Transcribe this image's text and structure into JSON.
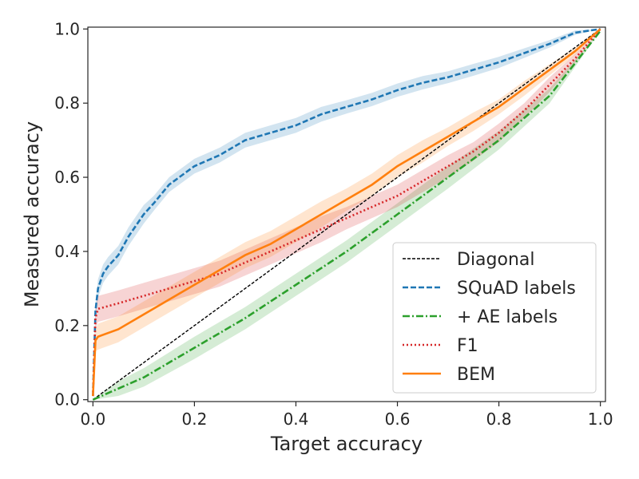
{
  "chart_data": {
    "type": "line",
    "title": "",
    "xlabel": "Target accuracy",
    "ylabel": "Measured accuracy",
    "xlim": [
      -0.01,
      1.01
    ],
    "ylim": [
      -0.005,
      1.005
    ],
    "xticks": [
      0.0,
      0.2,
      0.4,
      0.6,
      0.8,
      1.0
    ],
    "yticks": [
      0.0,
      0.2,
      0.4,
      0.6,
      0.8,
      1.0
    ],
    "xtick_labels": [
      "0.0",
      "0.2",
      "0.4",
      "0.6",
      "0.8",
      "1.0"
    ],
    "ytick_labels": [
      "0.0",
      "0.2",
      "0.4",
      "0.6",
      "0.8",
      "1.0"
    ],
    "legend_position": "lower-right",
    "series": [
      {
        "name": "Diagonal",
        "color": "#000000",
        "style": "dashed",
        "x": [
          0.0,
          1.0
        ],
        "y": [
          0.0,
          1.0
        ],
        "band": null
      },
      {
        "name": "SQuAD labels",
        "color": "#1f77b4",
        "style": "dashed",
        "x": [
          0.0,
          0.005,
          0.01,
          0.02,
          0.03,
          0.05,
          0.07,
          0.1,
          0.12,
          0.15,
          0.2,
          0.25,
          0.3,
          0.35,
          0.4,
          0.45,
          0.5,
          0.55,
          0.6,
          0.65,
          0.7,
          0.75,
          0.8,
          0.85,
          0.9,
          0.95,
          1.0
        ],
        "y": [
          0.01,
          0.24,
          0.3,
          0.34,
          0.36,
          0.39,
          0.44,
          0.5,
          0.53,
          0.58,
          0.63,
          0.66,
          0.7,
          0.72,
          0.74,
          0.77,
          0.79,
          0.81,
          0.835,
          0.855,
          0.87,
          0.89,
          0.91,
          0.935,
          0.96,
          0.99,
          1.0
        ],
        "band": [
          0.025,
          0.022,
          0.025,
          0.025,
          0.025,
          0.025,
          0.025,
          0.025,
          0.02,
          0.02,
          0.02,
          0.02,
          0.02,
          0.02,
          0.02,
          0.02,
          0.018,
          0.018,
          0.018,
          0.018,
          0.016,
          0.016,
          0.015,
          0.013,
          0.01,
          0.006,
          0.0
        ]
      },
      {
        "name": "+ AE labels",
        "color": "#2ca02c",
        "style": "dashdot",
        "x": [
          0.0,
          0.05,
          0.1,
          0.2,
          0.3,
          0.4,
          0.5,
          0.6,
          0.7,
          0.8,
          0.9,
          1.0
        ],
        "y": [
          0.0,
          0.03,
          0.06,
          0.14,
          0.22,
          0.31,
          0.4,
          0.5,
          0.6,
          0.7,
          0.82,
          0.995
        ],
        "band": [
          0.0,
          0.02,
          0.025,
          0.03,
          0.03,
          0.03,
          0.03,
          0.03,
          0.03,
          0.025,
          0.02,
          0.0
        ]
      },
      {
        "name": "F1",
        "color": "#d62728",
        "style": "dotted",
        "x": [
          0.0,
          0.005,
          0.01,
          0.05,
          0.1,
          0.15,
          0.2,
          0.25,
          0.3,
          0.35,
          0.4,
          0.45,
          0.5,
          0.55,
          0.6,
          0.65,
          0.7,
          0.75,
          0.8,
          0.85,
          0.9,
          0.95,
          1.0
        ],
        "y": [
          0.01,
          0.22,
          0.245,
          0.26,
          0.28,
          0.3,
          0.32,
          0.34,
          0.37,
          0.4,
          0.43,
          0.46,
          0.49,
          0.52,
          0.55,
          0.59,
          0.63,
          0.67,
          0.72,
          0.78,
          0.85,
          0.92,
          1.0
        ],
        "band": [
          0.0,
          0.03,
          0.035,
          0.035,
          0.035,
          0.035,
          0.035,
          0.035,
          0.035,
          0.035,
          0.035,
          0.035,
          0.03,
          0.03,
          0.03,
          0.03,
          0.03,
          0.025,
          0.025,
          0.02,
          0.02,
          0.012,
          0.0
        ]
      },
      {
        "name": "BEM",
        "color": "#ff7f0e",
        "style": "solid",
        "x": [
          0.0,
          0.005,
          0.01,
          0.05,
          0.1,
          0.15,
          0.2,
          0.25,
          0.3,
          0.35,
          0.4,
          0.45,
          0.5,
          0.55,
          0.6,
          0.65,
          0.7,
          0.75,
          0.8,
          0.85,
          0.9,
          0.95,
          1.0
        ],
        "y": [
          0.01,
          0.16,
          0.17,
          0.19,
          0.23,
          0.27,
          0.31,
          0.35,
          0.39,
          0.42,
          0.46,
          0.5,
          0.54,
          0.58,
          0.63,
          0.67,
          0.71,
          0.75,
          0.79,
          0.84,
          0.89,
          0.94,
          1.0
        ],
        "band": [
          0.0,
          0.03,
          0.035,
          0.035,
          0.035,
          0.035,
          0.035,
          0.035,
          0.035,
          0.035,
          0.035,
          0.035,
          0.03,
          0.03,
          0.03,
          0.03,
          0.025,
          0.025,
          0.02,
          0.02,
          0.015,
          0.01,
          0.0
        ]
      }
    ]
  }
}
